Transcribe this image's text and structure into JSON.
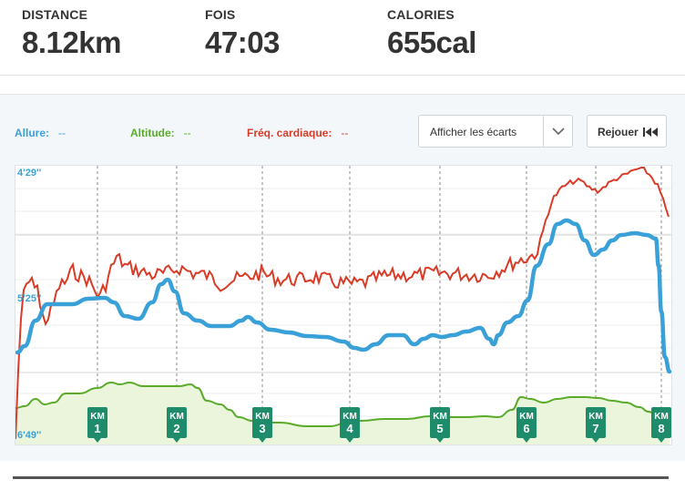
{
  "stats": {
    "distance": {
      "label": "DISTANCE",
      "value": "8.12km"
    },
    "time": {
      "label": "FOIS",
      "value": "47:03"
    },
    "calories": {
      "label": "CALORIES",
      "value": "655cal"
    }
  },
  "legend": {
    "pace": {
      "label": "Allure:",
      "value": "--",
      "color": "#3aa0d8"
    },
    "altitude": {
      "label": "Altitude:",
      "value": "--",
      "color": "#5aab2a"
    },
    "heart": {
      "label": "Fréq. cardiaque:",
      "value": "--",
      "color": "#d93b26"
    }
  },
  "controls": {
    "select_value": "Afficher les écarts",
    "chevron_icon": "chevron-down-icon",
    "replay_label": "Rejouer",
    "replay_icon": "rewind-icon"
  },
  "chart_data": {
    "type": "line",
    "x_label_unit": "KM",
    "km_markers": [
      "1",
      "2",
      "3",
      "4",
      "5",
      "6",
      "7",
      "8"
    ],
    "y_ticks": [
      "4'29''",
      "5'25''",
      "6'49''"
    ],
    "series": [
      {
        "name": "Allure",
        "color": "#3aa0d8"
      },
      {
        "name": "Altitude",
        "color": "#5aab2a"
      },
      {
        "name": "Fréq. cardiaque",
        "color": "#d93b26"
      }
    ]
  }
}
